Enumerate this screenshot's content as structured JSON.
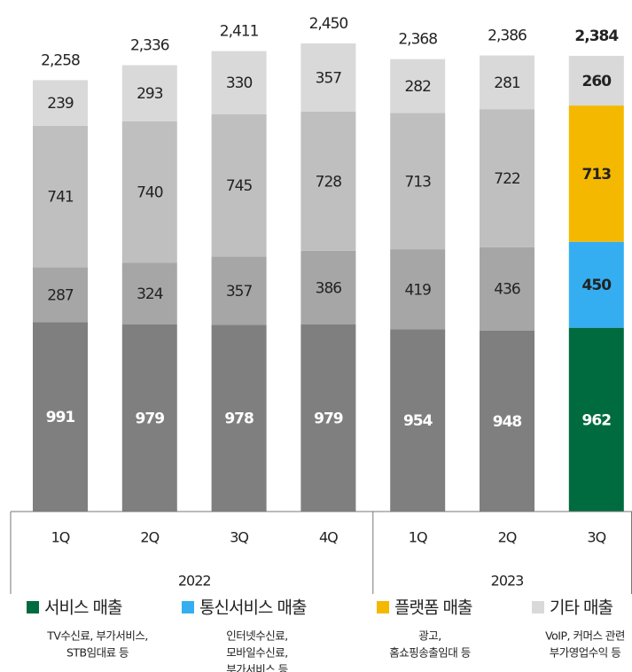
{
  "chart_data": {
    "type": "stacked-bar",
    "categories": [
      "1Q",
      "2Q",
      "3Q",
      "4Q",
      "1Q",
      "2Q",
      "3Q"
    ],
    "years": [
      "2022",
      "2022",
      "2022",
      "2022",
      "2023",
      "2023",
      "2023"
    ],
    "series": [
      {
        "name": "서비스 매출",
        "color": "#006b3f",
        "muted_color": "#7f7f7f",
        "description": [
          "TV수신료, 부가서비스,",
          "STB임대료 등"
        ],
        "values": [
          991,
          979,
          978,
          979,
          954,
          948,
          962
        ]
      },
      {
        "name": "통신서비스 매출",
        "color": "#34aef0",
        "muted_color": "#a6a6a6",
        "description": [
          "인터넷수신료,",
          "모바일수신료,",
          "부가서비스 등"
        ],
        "values": [
          287,
          324,
          357,
          386,
          419,
          436,
          450
        ]
      },
      {
        "name": "플랫폼 매출",
        "color": "#f5b800",
        "muted_color": "#bfbfbf",
        "description": [
          "광고,",
          "홈쇼핑송출임대 등"
        ],
        "values": [
          741,
          740,
          745,
          728,
          713,
          722,
          713
        ]
      },
      {
        "name": "기타 매출",
        "color": "#d9d9d9",
        "muted_color": "#d9d9d9",
        "description": [
          "VoIP, 커머스 관련",
          "부가영업수익 등"
        ],
        "values": [
          239,
          293,
          330,
          357,
          282,
          281,
          260
        ]
      }
    ],
    "totals": [
      2258,
      2336,
      2411,
      2450,
      2368,
      2386,
      2384
    ],
    "total_labels": [
      "2,258",
      "2,336",
      "2,411",
      "2,450",
      "2,368",
      "2,386",
      "2,384"
    ],
    "highlight": 6,
    "ylim": [
      0,
      2450
    ]
  }
}
